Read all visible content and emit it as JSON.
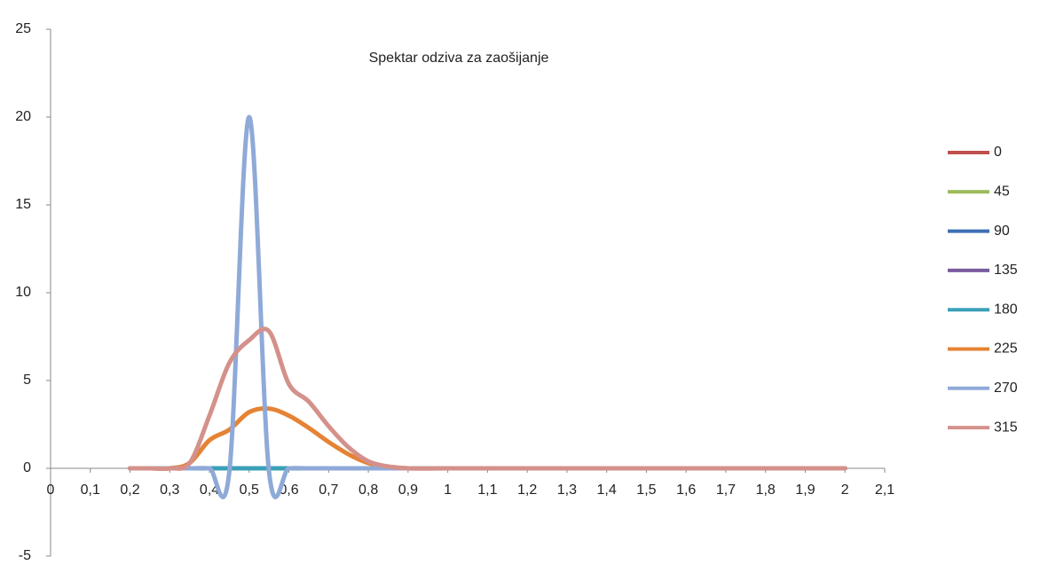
{
  "chart_data": {
    "type": "line",
    "title": "Spektar odziva za zaošijanje",
    "x": [
      0.2,
      0.25,
      0.3,
      0.35,
      0.4,
      0.45,
      0.5,
      0.55,
      0.6,
      0.65,
      0.7,
      0.75,
      0.8,
      0.85,
      0.9,
      1.0,
      1.2,
      1.4,
      1.6,
      1.8,
      2.0
    ],
    "series": [
      {
        "name": "0",
        "color": "#c0504d",
        "values": [
          0,
          0,
          0,
          0,
          0,
          0,
          0,
          0,
          0,
          0,
          0,
          0,
          0,
          0,
          0,
          0,
          0,
          0,
          0,
          0,
          0
        ]
      },
      {
        "name": "45",
        "color": "#9bbb59",
        "values": [
          0,
          0,
          0,
          0,
          0,
          0,
          0,
          0,
          0,
          0,
          0,
          0,
          0,
          0,
          0,
          0,
          0,
          0,
          0,
          0,
          0
        ]
      },
      {
        "name": "90",
        "color": "#3f6fb5",
        "values": [
          0,
          0,
          0,
          0,
          0,
          0,
          0,
          0,
          0,
          0,
          0,
          0,
          0,
          0,
          0,
          0,
          0,
          0,
          0,
          0,
          0
        ]
      },
      {
        "name": "135",
        "color": "#7a5b9e",
        "values": [
          0,
          0,
          0,
          0,
          0,
          0,
          0,
          0,
          0,
          0,
          0,
          0,
          0,
          0,
          0,
          0,
          0,
          0,
          0,
          0,
          0
        ]
      },
      {
        "name": "180",
        "color": "#3aa0b8",
        "values": [
          0,
          0,
          0,
          0,
          0,
          0,
          0,
          0,
          0,
          0,
          0,
          0,
          0,
          0,
          0,
          0,
          0,
          0,
          0,
          0,
          0
        ]
      },
      {
        "name": "225",
        "color": "#e58335",
        "values": [
          0,
          0,
          0,
          0.3,
          1.6,
          2.2,
          3.2,
          3.4,
          3.0,
          2.3,
          1.5,
          0.8,
          0.3,
          0.1,
          0,
          0,
          0,
          0,
          0,
          0,
          0
        ]
      },
      {
        "name": "270",
        "color": "#8faad8",
        "values": [
          0,
          0,
          0,
          0,
          0,
          -0.2,
          20,
          -0.2,
          0,
          0,
          0,
          0,
          0,
          0,
          0,
          0,
          0,
          0,
          0,
          0,
          0
        ]
      },
      {
        "name": "315",
        "color": "#d4918b",
        "values": [
          0,
          0,
          0,
          0.3,
          3,
          6,
          7.3,
          7.8,
          4.8,
          3.8,
          2.4,
          1.2,
          0.4,
          0.1,
          0,
          0,
          0,
          0,
          0,
          0,
          0
        ]
      }
    ],
    "xlim": [
      0,
      2.1
    ],
    "xticks": [
      0,
      {
        "value": 0.1,
        "label": "0,1"
      },
      {
        "value": 0.2,
        "label": "0,2"
      },
      {
        "value": 0.3,
        "label": "0,3"
      },
      {
        "value": 0.4,
        "label": "0,4"
      },
      {
        "value": 0.5,
        "label": "0,5"
      },
      {
        "value": 0.6,
        "label": "0,6"
      },
      {
        "value": 0.7,
        "label": "0,7"
      },
      {
        "value": 0.8,
        "label": "0,8"
      },
      {
        "value": 0.9,
        "label": "0,9"
      },
      1,
      {
        "value": 1.1,
        "label": "1,1"
      },
      {
        "value": 1.2,
        "label": "1,2"
      },
      {
        "value": 1.3,
        "label": "1,3"
      },
      {
        "value": 1.4,
        "label": "1,4"
      },
      {
        "value": 1.5,
        "label": "1,5"
      },
      {
        "value": 1.6,
        "label": "1,6"
      },
      {
        "value": 1.7,
        "label": "1,7"
      },
      {
        "value": 1.8,
        "label": "1,8"
      },
      {
        "value": 1.9,
        "label": "1,9"
      },
      2,
      {
        "value": 2.1,
        "label": "2,1"
      }
    ],
    "ylim": [
      -5,
      25
    ],
    "yticks": [
      -5,
      0,
      5,
      10,
      15,
      20,
      25
    ],
    "grid": false,
    "legend": "right"
  }
}
